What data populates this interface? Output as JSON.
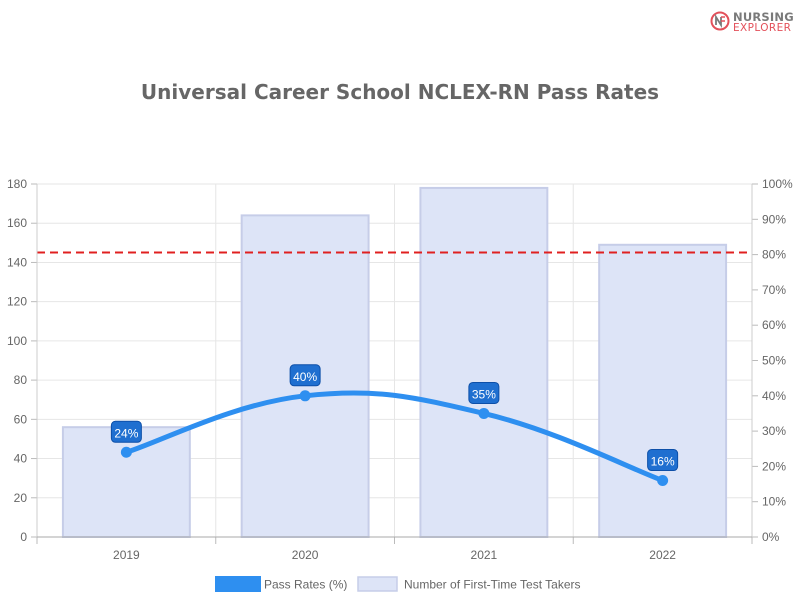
{
  "logo": {
    "line1": "NURSING",
    "line2": "EXPLORER",
    "icon": "nursing-explorer-logo-icon"
  },
  "chart_data": {
    "type": "bar",
    "title": "Universal Career School NCLEX-RN Pass Rates",
    "categories": [
      "2019",
      "2020",
      "2021",
      "2022"
    ],
    "series": [
      {
        "name": "Pass Rates (%)",
        "type": "line",
        "axis": "right",
        "values": [
          24,
          40,
          35,
          16
        ],
        "data_labels": [
          "24%",
          "40%",
          "35%",
          "16%"
        ],
        "color": "#2e8ff0"
      },
      {
        "name": "Number of First-Time Test Takers",
        "type": "bar",
        "axis": "left",
        "values": [
          56,
          164,
          178,
          149
        ],
        "color": "#dde4f7",
        "border_color": "#c6cde8"
      }
    ],
    "left_axis": {
      "ylim": [
        0,
        180
      ],
      "ticks": [
        "0",
        "20",
        "40",
        "60",
        "80",
        "100",
        "120",
        "140",
        "160",
        "180"
      ]
    },
    "right_axis": {
      "ylim": [
        0,
        100
      ],
      "ticks": [
        "0%",
        "10%",
        "20%",
        "30%",
        "40%",
        "50%",
        "60%",
        "70%",
        "80%",
        "90%",
        "100%"
      ]
    },
    "reference_line": {
      "axis": "right",
      "value": 80.6,
      "color": "#e02020",
      "style": "dashed"
    },
    "grid": true,
    "legend_position": "bottom",
    "label_color": "#1f6fd0"
  }
}
